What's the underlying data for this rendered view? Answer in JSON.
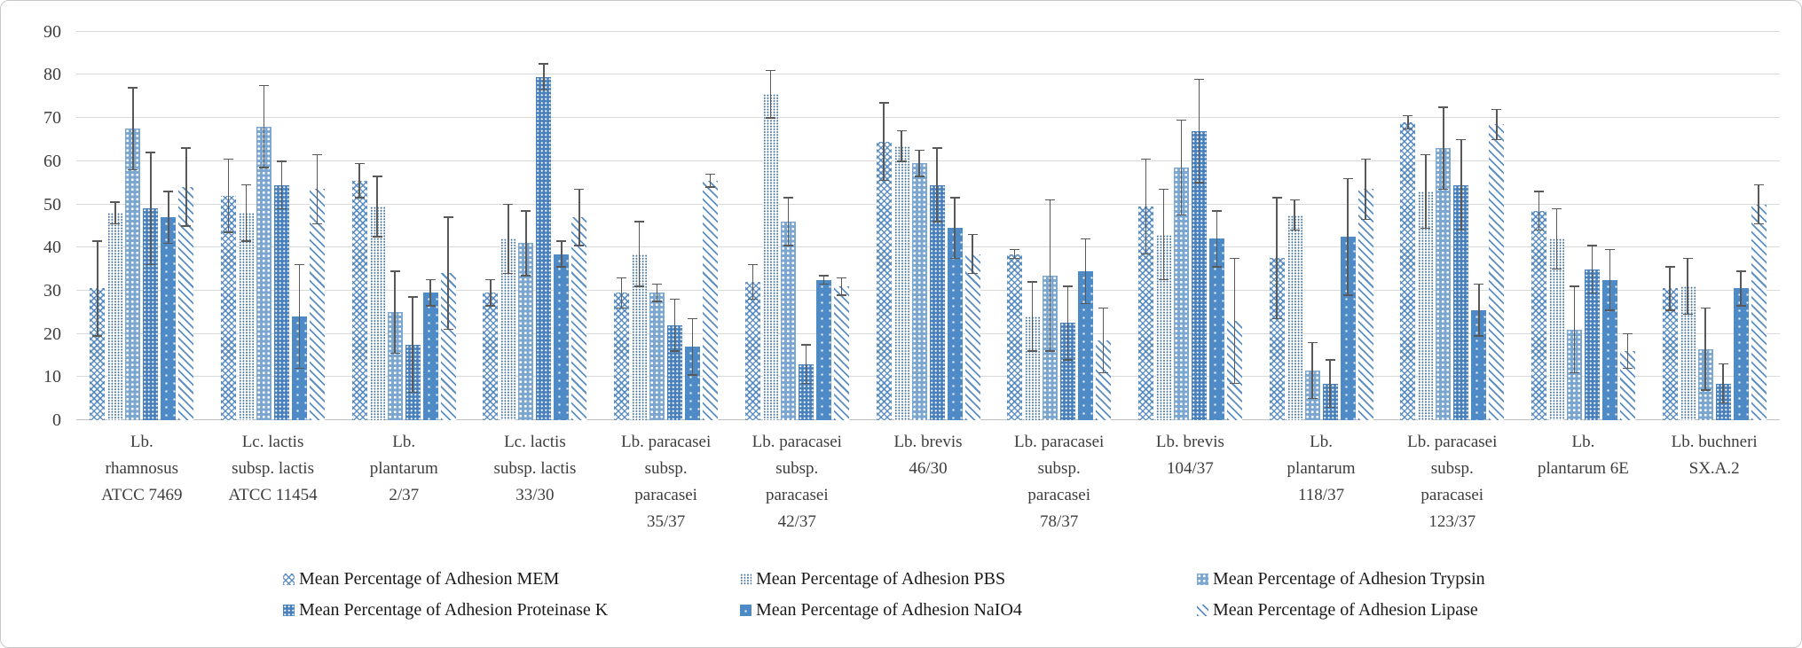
{
  "colors": {
    "bar_blue_solid": "#4e8ac6",
    "bar_blue_dark": "#4a81bd",
    "bar_blue_medium": "#7aa6d0",
    "bar_blue_line": "#5b8ec4",
    "dot_blue": "#41719c",
    "gridline": "#d9d9d9",
    "axis_line": "#bfbfbf",
    "error_bar": "#595959",
    "text": "#3d3d3d",
    "frame_border": "#c9c9c9"
  },
  "chart_data": {
    "type": "bar",
    "title": "",
    "xlabel": "",
    "ylabel": "",
    "ylim": [
      0,
      90
    ],
    "yticks": [
      0,
      10,
      20,
      30,
      40,
      50,
      60,
      70,
      80,
      90
    ],
    "grid": true,
    "error_bars": true,
    "legend_position": "bottom",
    "categories": [
      "Lb.\nrhamnosus\nATCC 7469",
      "Lc. lactis\nsubsp. lactis\nATCC 11454",
      "Lb.\nplantarum\n2/37",
      "Lc. lactis\nsubsp. lactis\n33/30",
      "Lb. paracasei\nsubsp.\nparacasei\n35/37",
      "Lb. paracasei\nsubsp.\nparacasei\n42/37",
      "Lb. brevis\n46/30",
      "Lb. paracasei\nsubsp.\nparacasei\n78/37",
      "Lb. brevis\n104/37",
      "Lb.\nplantarum\n118/37",
      "Lb. paracasei\nsubsp.\nparacasei\n123/37",
      "Lb.\nplantarum 6E",
      "Lb. buchneri\nSX.A.2"
    ],
    "series": [
      {
        "name": "Mean Percentage of Adhesion MEM",
        "key": "mem",
        "pattern": "diamond-lattice",
        "values": [
          30.5,
          52,
          55.5,
          29.5,
          29.5,
          32,
          64.5,
          38.5,
          49.5,
          37.5,
          69,
          48.5,
          30.5
        ],
        "errors": [
          11,
          8.5,
          4,
          3,
          3.5,
          4,
          9,
          1,
          11,
          14,
          1.5,
          4.5,
          5
        ]
      },
      {
        "name": "Mean Percentage of Adhesion PBS",
        "key": "pbs",
        "pattern": "fine-dots",
        "values": [
          48,
          48,
          49.5,
          42,
          38.5,
          75.5,
          63.5,
          24,
          43,
          47.5,
          53,
          42,
          31
        ],
        "errors": [
          2.5,
          6.5,
          7,
          8,
          7.5,
          5.5,
          3.5,
          8,
          10.5,
          3.5,
          8.5,
          7,
          6.5
        ]
      },
      {
        "name": "Mean Percentage of Adhesion Trypsin",
        "key": "trypsin",
        "pattern": "white-dots-on-medium-blue",
        "values": [
          67.5,
          68,
          25,
          41,
          29.5,
          46,
          59.5,
          33.5,
          58.5,
          11.5,
          63,
          21,
          16.5
        ],
        "errors": [
          9.5,
          9.5,
          9.5,
          7.5,
          2,
          5.5,
          3,
          17.5,
          11,
          6.5,
          9.5,
          10,
          9.5
        ]
      },
      {
        "name": "Mean Percentage of Adhesion Proteinase K",
        "key": "protk",
        "pattern": "white-dots-on-dark-blue",
        "values": [
          49,
          54.5,
          17.5,
          79.5,
          22,
          13,
          54.5,
          22.5,
          67,
          8.5,
          54.5,
          35,
          8.5
        ],
        "errors": [
          13,
          5.5,
          11,
          3,
          6,
          4.5,
          8.5,
          8.5,
          12,
          5.5,
          10.5,
          5.5,
          4.5
        ]
      },
      {
        "name": "Mean Percentage of Adhesion NaIO4",
        "key": "naio4",
        "pattern": "solid-blue-sparse-dots",
        "values": [
          47,
          24,
          29.5,
          38.5,
          17,
          32.5,
          44.5,
          34.5,
          42,
          42.5,
          25.5,
          32.5,
          30.5
        ],
        "errors": [
          6,
          12,
          3,
          3,
          6.5,
          1,
          7,
          7.5,
          6.5,
          13.5,
          6,
          7,
          4
        ]
      },
      {
        "name": "Mean Percentage of Adhesion Lipase",
        "key": "lipase",
        "pattern": "diagonal-stripes",
        "values": [
          54,
          53.5,
          34,
          47,
          55.5,
          31,
          38.5,
          18.5,
          23,
          53.5,
          68.5,
          16,
          50
        ],
        "errors": [
          9,
          8,
          13,
          6.5,
          1.5,
          2,
          4.5,
          7.5,
          14.5,
          7,
          3.5,
          4,
          4.5
        ]
      }
    ]
  }
}
